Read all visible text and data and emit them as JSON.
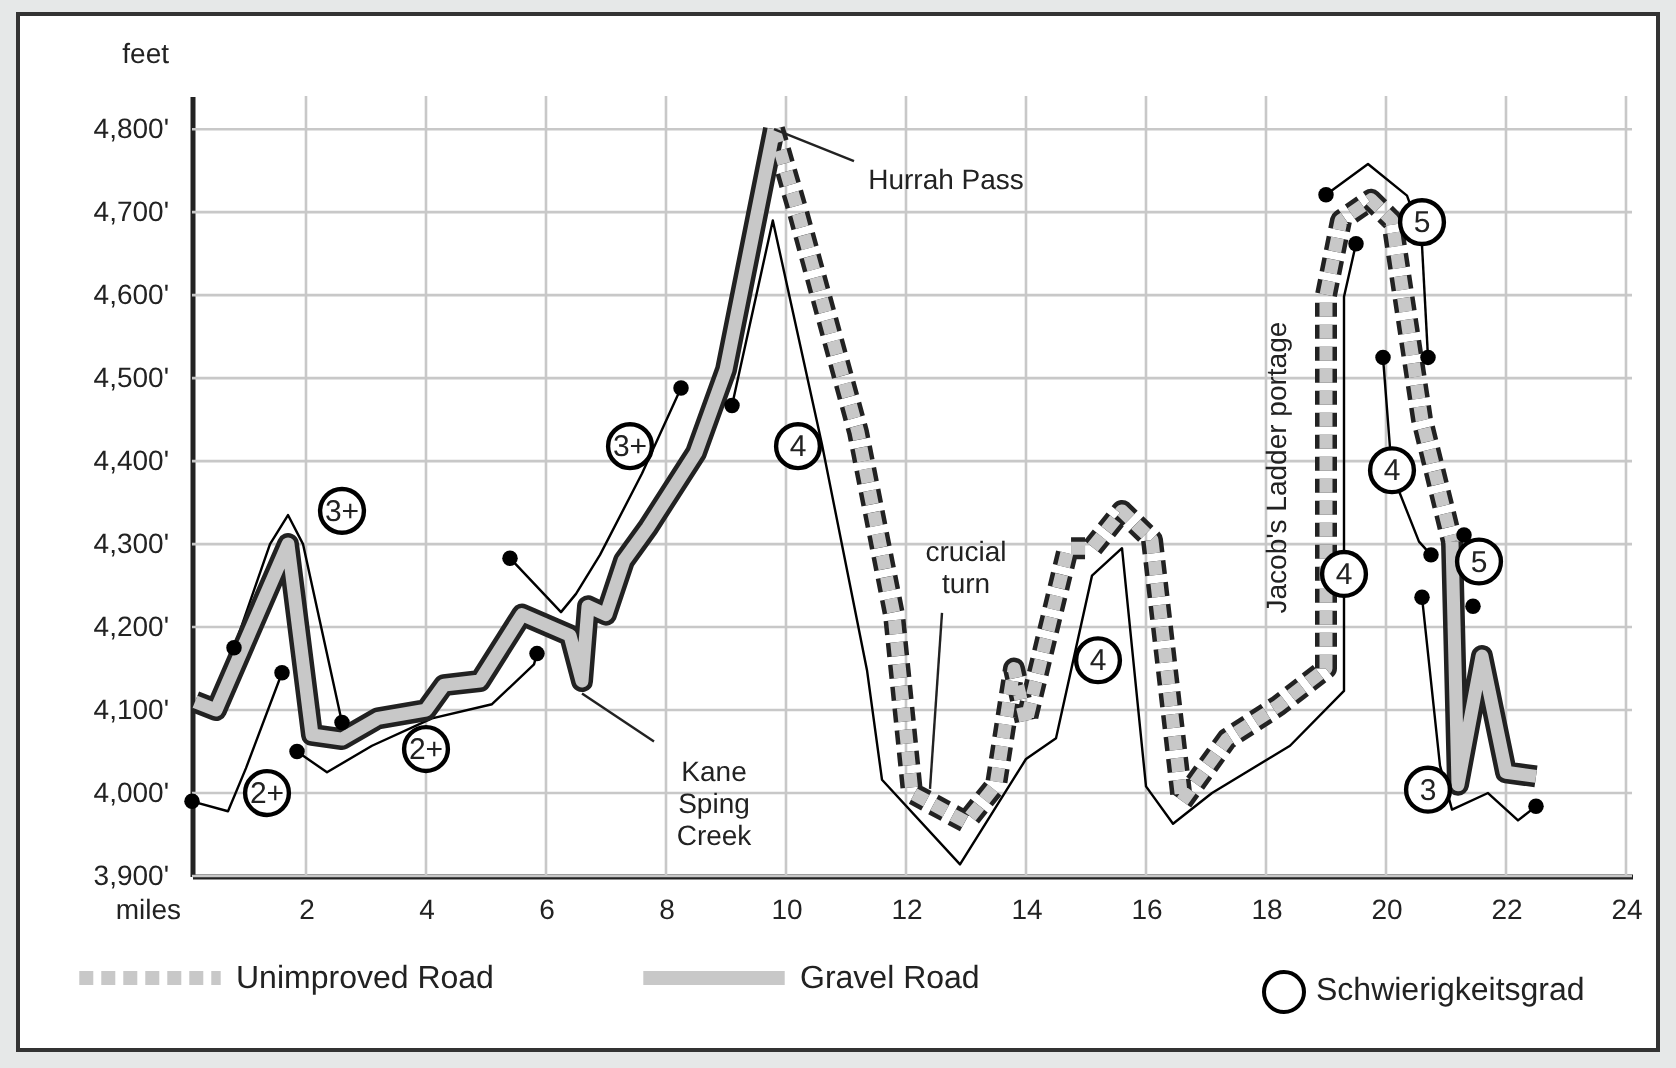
{
  "chart_data": {
    "type": "line",
    "xlabel": "miles",
    "ylabel": "feet",
    "xlim": [
      0.1,
      24.1
    ],
    "xticks": [
      2,
      4,
      6,
      8,
      10,
      12,
      14,
      16,
      18,
      20,
      22,
      24
    ],
    "ylim": [
      3900,
      4840
    ],
    "yticks": [
      {
        "value": 3900,
        "label": "3,900'"
      },
      {
        "value": 4000,
        "label": "4,000'"
      },
      {
        "value": 4100,
        "label": "4,100'"
      },
      {
        "value": 4200,
        "label": "4,200'"
      },
      {
        "value": 4300,
        "label": "4,300'"
      },
      {
        "value": 4400,
        "label": "4,400'"
      },
      {
        "value": 4500,
        "label": "4,500'"
      },
      {
        "value": 4600,
        "label": "4,600'"
      },
      {
        "value": 4700,
        "label": "4,700'"
      },
      {
        "value": 4800,
        "label": "4,800'"
      }
    ],
    "grid": true,
    "legend": "bottom",
    "series": [
      {
        "name": "Unimproved Road",
        "color": "#c8c8c8",
        "line_style": "dashed",
        "x": [
          9.8,
          10.2,
          11.2,
          11.8,
          12.1,
          13.0,
          13.5,
          13.8,
          14.0,
          14.7,
          15.1,
          15.6,
          16.1,
          16.6,
          17.35,
          18.2,
          19.0,
          19.0,
          19.25,
          19.75,
          20.1,
          20.6,
          21.1
        ],
        "values": [
          4800,
          4700,
          4435,
          4215,
          4000,
          3965,
          4010,
          4150,
          4085,
          4295,
          4295,
          4340,
          4305,
          3990,
          4065,
          4105,
          4150,
          4600,
          4690,
          4715,
          4690,
          4450,
          4303
        ]
      },
      {
        "name": "Gravel Road",
        "color": "#c8c8c8",
        "line_style": "solid",
        "x": [
          0.15,
          0.5,
          1.7,
          2.1,
          2.6,
          3.2,
          4.0,
          4.3,
          4.9,
          5.6,
          6.4,
          6.6,
          6.7,
          7.0,
          7.3,
          7.7,
          8.5,
          9.0,
          9.8,
          null,
          21.1,
          21.2,
          21.6,
          22.0,
          22.5
        ],
        "values": [
          4110,
          4100,
          4300,
          4070,
          4065,
          4090,
          4100,
          4130,
          4135,
          4215,
          4190,
          4135,
          4225,
          4215,
          4280,
          4320,
          4410,
          4510,
          4800,
          null,
          4303,
          4010,
          4165,
          4025,
          4020
        ]
      },
      {
        "color": "#000000",
        "line_style": "solid",
        "x": [
          0.1,
          0.7,
          1.0,
          1.6,
          null,
          0.8,
          1.4,
          1.7,
          1.95,
          2.6,
          null,
          1.85,
          2.35,
          3.1,
          4.1,
          5.1,
          5.8,
          5.85,
          null,
          5.4,
          6.25,
          6.5,
          6.9,
          7.6,
          8.25,
          null,
          9.1,
          9.78,
          10.6,
          11.35,
          11.6,
          12.9,
          14.0,
          14.5,
          15.1,
          15.6,
          16.0,
          16.45,
          17.1,
          18.4,
          19.3,
          19.3,
          19.5,
          null,
          19.0,
          19.7,
          20.35,
          20.55,
          null,
          20.6,
          20.7,
          null,
          19.95,
          20.1,
          20.55,
          20.75,
          null,
          20.6,
          20.9,
          21.1,
          21.7,
          22.2,
          22.5
        ],
        "values": [
          3990,
          3978,
          4030,
          4145,
          null,
          4175,
          4300,
          4335,
          4300,
          4085,
          null,
          4050,
          4025,
          4057,
          4090,
          4107,
          4155,
          4168,
          null,
          4283,
          4218,
          4240,
          4287,
          4385,
          4488,
          null,
          4467,
          4690,
          4420,
          4148,
          4016,
          3914,
          4041,
          4066,
          4262,
          4295,
          4008,
          3963,
          4000,
          4057,
          4123,
          4598,
          4662,
          null,
          4721,
          4758,
          4720,
          4680,
          null,
          4660,
          4525,
          null,
          4525,
          4385,
          4303,
          4287,
          null,
          4236,
          4033,
          3980,
          4000,
          3967,
          3984
        ]
      },
      {
        "type": "scatter",
        "color": "#000000",
        "marker": "circle",
        "x": [
          0.1,
          1.6,
          0.8,
          2.6,
          1.85,
          5.85,
          5.4,
          8.25,
          9.1,
          19.5,
          19.0,
          20.7,
          19.95,
          20.75,
          21.3,
          21.45,
          20.6,
          22.5
        ],
        "values": [
          3990,
          4145,
          4175,
          4085,
          4050,
          4168,
          4283,
          4488,
          4467,
          4662,
          4721,
          4525,
          4525,
          4287,
          4311,
          4225,
          4236,
          3984
        ]
      },
      {
        "name": "Schwierigkeitsgrad",
        "type": "scatter",
        "color": "#000000",
        "marker": "circle",
        "x": [
          1.35,
          2.6,
          4.0,
          7.4,
          10.2,
          15.2,
          19.3,
          20.6,
          20.1,
          21.55,
          20.7
        ],
        "values": [
          4000,
          4340,
          4053,
          4418,
          4418,
          4160,
          4264,
          4688,
          4389,
          4279,
          4004
        ]
      }
    ],
    "annotations": [
      {
        "text": "Hurrah Pass",
        "x": 9.8,
        "y": 4800
      },
      {
        "text": "Kane Sping Creek",
        "x": 6.6,
        "y": 4120
      },
      {
        "text": "crucial turn",
        "x": 12.4,
        "y": 4005
      },
      {
        "text": "Jacob's Ladder portage",
        "x": 19.0,
        "y": 4450
      },
      {
        "text": "2+",
        "x": 1.35,
        "y": 4000
      },
      {
        "text": "3+",
        "x": 2.6,
        "y": 4340
      },
      {
        "text": "2+",
        "x": 4.0,
        "y": 4053
      },
      {
        "text": "3+",
        "x": 7.4,
        "y": 4418
      },
      {
        "text": "4",
        "x": 10.2,
        "y": 4418
      },
      {
        "text": "4",
        "x": 15.2,
        "y": 4160
      },
      {
        "text": "4",
        "x": 19.3,
        "y": 4264
      },
      {
        "text": "5",
        "x": 20.6,
        "y": 4688
      },
      {
        "text": "4",
        "x": 20.1,
        "y": 4389
      },
      {
        "text": "5",
        "x": 21.55,
        "y": 4279
      },
      {
        "text": "3",
        "x": 20.7,
        "y": 4004
      }
    ]
  }
}
